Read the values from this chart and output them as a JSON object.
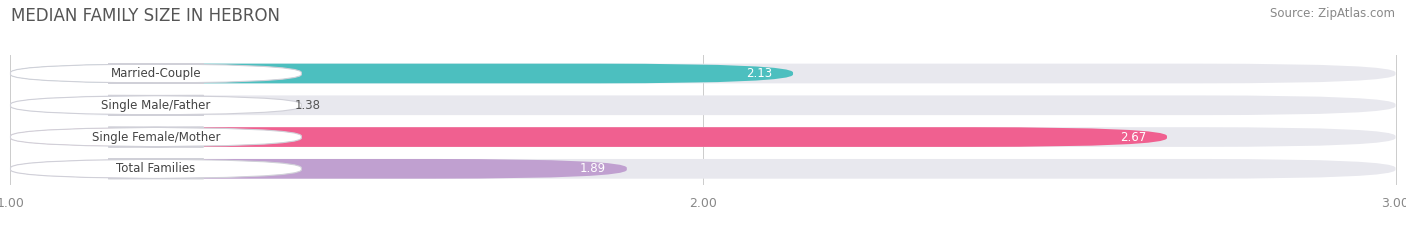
{
  "title": "MEDIAN FAMILY SIZE IN HEBRON",
  "source": "Source: ZipAtlas.com",
  "categories": [
    "Married-Couple",
    "Single Male/Father",
    "Single Female/Mother",
    "Total Families"
  ],
  "values": [
    2.13,
    1.38,
    2.67,
    1.89
  ],
  "bar_colors": [
    "#4CBFBF",
    "#B0C4E8",
    "#F06090",
    "#C0A0D0"
  ],
  "track_color": "#E8E8EE",
  "x_min": 1.0,
  "x_max": 3.0,
  "x_ticks": [
    1.0,
    2.0,
    3.0
  ],
  "background_color": "#ffffff",
  "title_fontsize": 12,
  "source_fontsize": 8.5,
  "label_fontsize": 8.5,
  "value_fontsize": 8.5,
  "tick_fontsize": 9,
  "bar_height": 0.62,
  "figsize": [
    14.06,
    2.33
  ],
  "dpi": 100
}
